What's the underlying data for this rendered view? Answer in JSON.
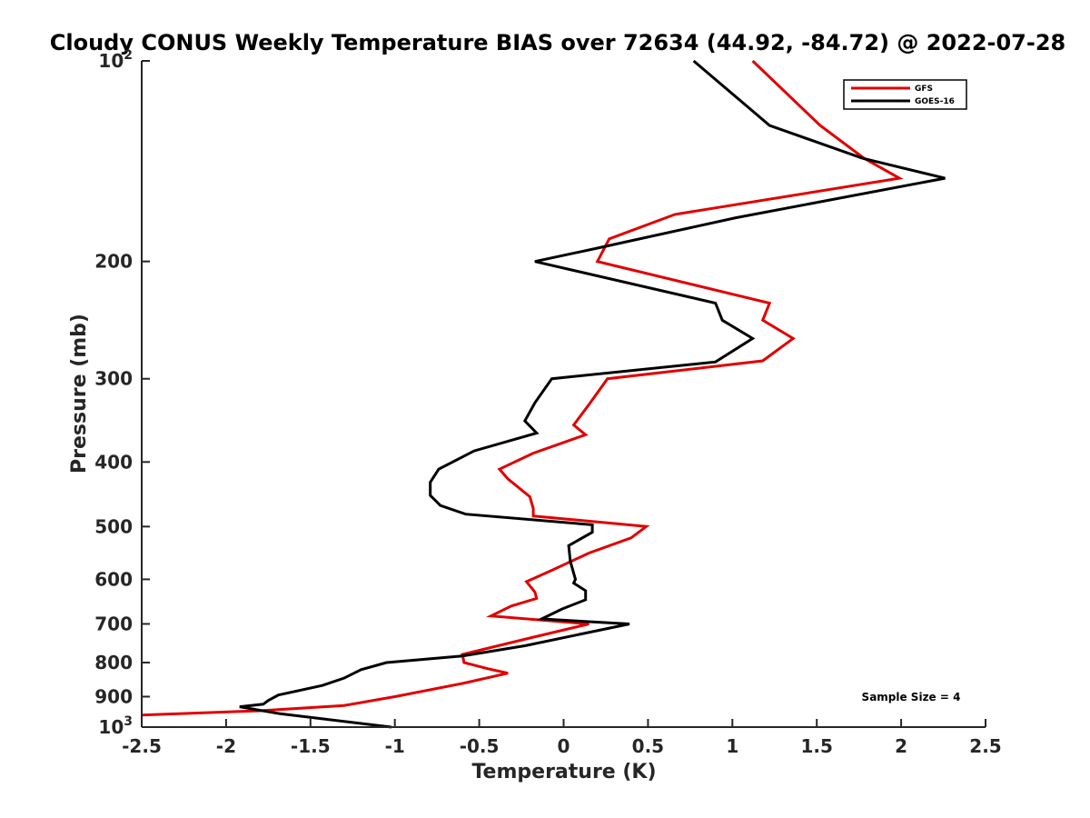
{
  "chart_data": {
    "type": "line",
    "title": "Cloudy CONUS Weekly Temperature BIAS over 72634 (44.92, -84.72) @ 2022-07-28",
    "xlabel": "Temperature (K)",
    "ylabel": "Pressure (mb)",
    "xlim": [
      -2.5,
      2.5
    ],
    "ylim": [
      100,
      1000
    ],
    "y_scale": "log",
    "y_reversed": true,
    "grid": false,
    "legend_position": "top-right",
    "x_ticks": [
      -2.5,
      -2,
      -1.5,
      -1,
      -0.5,
      0,
      0.5,
      1,
      1.5,
      2,
      2.5
    ],
    "x_tick_labels": [
      "-2.5",
      "-2",
      "-1.5",
      "-1",
      "-0.5",
      "0",
      "0.5",
      "1",
      "1.5",
      "2",
      "2.5"
    ],
    "y_ticks": [
      {
        "value": 100,
        "base": "10",
        "exp": "2"
      },
      {
        "value": 200,
        "label": "200"
      },
      {
        "value": 300,
        "label": "300"
      },
      {
        "value": 400,
        "label": "400"
      },
      {
        "value": 500,
        "label": "500"
      },
      {
        "value": 600,
        "label": "600"
      },
      {
        "value": 700,
        "label": "700"
      },
      {
        "value": 800,
        "label": "800"
      },
      {
        "value": 900,
        "label": "900"
      },
      {
        "value": 1000,
        "base": "10",
        "exp": "3"
      }
    ],
    "annotation": "Sample Size = 4",
    "series": [
      {
        "name": "GFS",
        "color": "#e00000",
        "points": [
          [
            1.12,
            100
          ],
          [
            1.52,
            125
          ],
          [
            1.78,
            140
          ],
          [
            1.99,
            150
          ],
          [
            0.66,
            170
          ],
          [
            0.27,
            185
          ],
          [
            0.2,
            200
          ],
          [
            1.22,
            231
          ],
          [
            1.18,
            245
          ],
          [
            1.36,
            261
          ],
          [
            1.18,
            282
          ],
          [
            0.26,
            300
          ],
          [
            0.15,
            328
          ],
          [
            0.06,
            352
          ],
          [
            0.13,
            364
          ],
          [
            -0.18,
            388
          ],
          [
            -0.38,
            410
          ],
          [
            -0.33,
            424
          ],
          [
            -0.2,
            451
          ],
          [
            -0.18,
            470
          ],
          [
            -0.18,
            482
          ],
          [
            0.49,
            500
          ],
          [
            0.4,
            520
          ],
          [
            0.15,
            548
          ],
          [
            -0.06,
            580
          ],
          [
            -0.22,
            605
          ],
          [
            -0.17,
            627
          ],
          [
            -0.16,
            641
          ],
          [
            -0.31,
            658
          ],
          [
            -0.43,
            681
          ],
          [
            0.15,
            700
          ],
          [
            -0.2,
            735
          ],
          [
            -0.6,
            778
          ],
          [
            -0.59,
            800
          ],
          [
            -0.45,
            817
          ],
          [
            -0.33,
            830
          ],
          [
            -0.6,
            860
          ],
          [
            -1.0,
            900
          ],
          [
            -1.3,
            928
          ],
          [
            -1.8,
            945
          ],
          [
            -2.5,
            959
          ]
        ]
      },
      {
        "name": "GOES-16",
        "color": "#000000",
        "points": [
          [
            0.77,
            100
          ],
          [
            1.22,
            125
          ],
          [
            1.77,
            140
          ],
          [
            2.26,
            150
          ],
          [
            1.02,
            172
          ],
          [
            0.2,
            191
          ],
          [
            -0.17,
            200
          ],
          [
            0.9,
            231
          ],
          [
            0.94,
            245
          ],
          [
            1.12,
            261
          ],
          [
            0.9,
            283
          ],
          [
            -0.07,
            300
          ],
          [
            -0.17,
            326
          ],
          [
            -0.23,
            347
          ],
          [
            -0.16,
            362
          ],
          [
            -0.53,
            385
          ],
          [
            -0.74,
            410
          ],
          [
            -0.79,
            429
          ],
          [
            -0.79,
            449
          ],
          [
            -0.73,
            465
          ],
          [
            -0.58,
            479
          ],
          [
            0.17,
            497
          ],
          [
            0.17,
            510
          ],
          [
            0.03,
            534
          ],
          [
            0.04,
            564
          ],
          [
            0.07,
            600
          ],
          [
            0.06,
            608
          ],
          [
            0.13,
            624
          ],
          [
            0.13,
            644
          ],
          [
            -0.01,
            665
          ],
          [
            -0.13,
            688
          ],
          [
            0.39,
            700
          ],
          [
            -0.23,
            755
          ],
          [
            -0.6,
            782
          ],
          [
            -1.05,
            800
          ],
          [
            -1.2,
            820
          ],
          [
            -1.3,
            844
          ],
          [
            -1.43,
            866
          ],
          [
            -1.69,
            895
          ],
          [
            -1.75,
            912
          ],
          [
            -1.78,
            924
          ],
          [
            -1.92,
            932
          ],
          [
            -1.68,
            955
          ],
          [
            -1.02,
            1000
          ]
        ]
      }
    ]
  }
}
